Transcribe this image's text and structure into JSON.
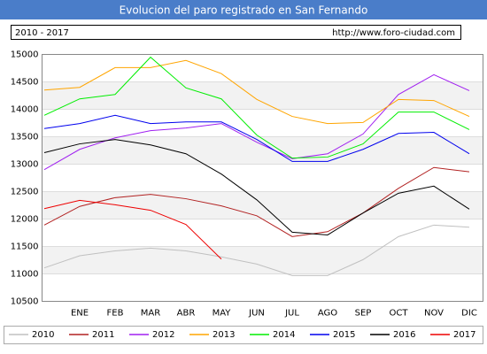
{
  "chart_data": {
    "type": "line",
    "title": "Evolucion del paro registrado en San Fernando",
    "subtitle": "2010 - 2017",
    "source": "http://www.foro-ciudad.com",
    "categories": [
      null,
      "ENE",
      "FEB",
      "MAR",
      "ABR",
      "MAY",
      "JUN",
      "JUL",
      "AGO",
      "SEP",
      "OCT",
      "NOV",
      "DIC"
    ],
    "ylim": [
      10500,
      15000
    ],
    "yticks": [
      10500,
      11000,
      11500,
      12000,
      12500,
      13000,
      13500,
      14000,
      14500,
      15000
    ],
    "grid": true,
    "series": [
      {
        "name": "2010",
        "color": "#c0c0c0",
        "values": [
          11110,
          11330,
          11420,
          11470,
          11420,
          11310,
          11180,
          10970,
          10970,
          11260,
          11680,
          11890,
          11850
        ]
      },
      {
        "name": "2011",
        "color": "#b22222",
        "values": [
          11890,
          12230,
          12390,
          12450,
          12370,
          12240,
          12060,
          11680,
          11770,
          12110,
          12560,
          12940,
          12860
        ]
      },
      {
        "name": "2012",
        "color": "#a020f0",
        "values": [
          12900,
          13270,
          13480,
          13610,
          13660,
          13740,
          13400,
          13100,
          13190,
          13550,
          14270,
          14630,
          14340
        ]
      },
      {
        "name": "2013",
        "color": "#ffa500",
        "values": [
          14350,
          14400,
          14760,
          14760,
          14890,
          14650,
          14180,
          13870,
          13740,
          13760,
          14180,
          14160,
          13870
        ]
      },
      {
        "name": "2014",
        "color": "#00ee00",
        "values": [
          13890,
          14190,
          14270,
          14950,
          14390,
          14190,
          13530,
          13110,
          13130,
          13370,
          13950,
          13950,
          13630
        ]
      },
      {
        "name": "2015",
        "color": "#0000ee",
        "values": [
          13650,
          13740,
          13890,
          13740,
          13770,
          13770,
          13450,
          13050,
          13050,
          13270,
          13560,
          13580,
          13190
        ]
      },
      {
        "name": "2016",
        "color": "#000000",
        "values": [
          13210,
          13370,
          13450,
          13350,
          13190,
          12820,
          12350,
          11760,
          11710,
          12110,
          12470,
          12600,
          12180
        ]
      },
      {
        "name": "2017",
        "color": "#ee0000",
        "values": [
          12190,
          12340,
          12260,
          12160,
          11900,
          11270,
          null,
          null,
          null,
          null,
          null,
          null,
          null
        ]
      }
    ]
  }
}
